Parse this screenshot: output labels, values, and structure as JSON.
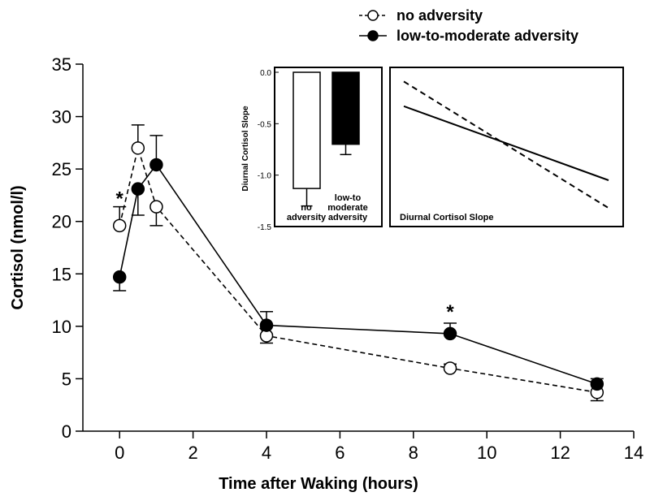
{
  "legend": {
    "items": [
      {
        "label": "no adversity",
        "marker": "open-circle",
        "line": "dashed"
      },
      {
        "label": "low-to-moderate adversity",
        "marker": "filled-circle",
        "line": "solid"
      }
    ]
  },
  "chart_data": [
    {
      "type": "line",
      "xlabel": "Time after Waking (hours)",
      "ylabel": "Cortisol (nmol/l)",
      "xlim": [
        -1,
        14
      ],
      "ylim": [
        0,
        35
      ],
      "xticks": [
        0,
        2,
        4,
        6,
        8,
        10,
        12,
        14
      ],
      "yticks": [
        0,
        5,
        10,
        15,
        20,
        25,
        30,
        35
      ],
      "grid": false,
      "legend_position": "top-center",
      "series": [
        {
          "name": "no adversity",
          "marker": "open-circle",
          "line": "dashed",
          "x": [
            0,
            0.5,
            1,
            4,
            9,
            13
          ],
          "y": [
            19.6,
            27.0,
            21.4,
            9.1,
            6.0,
            3.7
          ],
          "error": [
            1.8,
            2.2,
            1.8,
            0.7,
            0.4,
            0.8
          ],
          "error_direction": [
            "up",
            "up",
            "down",
            "down",
            "up",
            "down"
          ]
        },
        {
          "name": "low-to-moderate adversity",
          "marker": "filled-circle",
          "line": "solid",
          "x": [
            0,
            0.5,
            1,
            4,
            9,
            13
          ],
          "y": [
            14.7,
            23.1,
            25.4,
            10.1,
            9.3,
            4.5
          ],
          "error": [
            1.3,
            2.5,
            2.8,
            1.3,
            1.0,
            0.5
          ],
          "error_direction": [
            "down",
            "down",
            "up",
            "up",
            "up",
            "up"
          ]
        }
      ],
      "annotations": [
        {
          "text": "*",
          "x": 0,
          "y": 22.5
        },
        {
          "text": "*",
          "x": 9,
          "y": 11.7
        }
      ]
    },
    {
      "type": "bar",
      "ylabel": "Diurnal Cortisol Slope",
      "categories": [
        "no adversity",
        "low-to moderate adversity"
      ],
      "category_lines": [
        [
          "no",
          "adversity"
        ],
        [
          "low-to",
          "moderate",
          "adversity"
        ]
      ],
      "values": [
        -1.13,
        -0.7
      ],
      "error": [
        0.17,
        0.1
      ],
      "fills": [
        "#ffffff",
        "#000000"
      ],
      "ylim": [
        -1.5,
        0.0
      ],
      "yticks": [
        0.0,
        -0.5,
        -1.0,
        -1.5
      ],
      "ytick_labels": [
        "0.0",
        "-0.5",
        "-1.0",
        "-1.5"
      ]
    },
    {
      "type": "line",
      "title": "Diurnal Cortisol Slope",
      "axes_visible": false,
      "series": [
        {
          "line": "dashed",
          "x": [
            0,
            1
          ],
          "y": [
            0.94,
            0.12
          ]
        },
        {
          "line": "solid",
          "x": [
            0,
            1
          ],
          "y": [
            0.78,
            0.3
          ]
        }
      ]
    }
  ]
}
